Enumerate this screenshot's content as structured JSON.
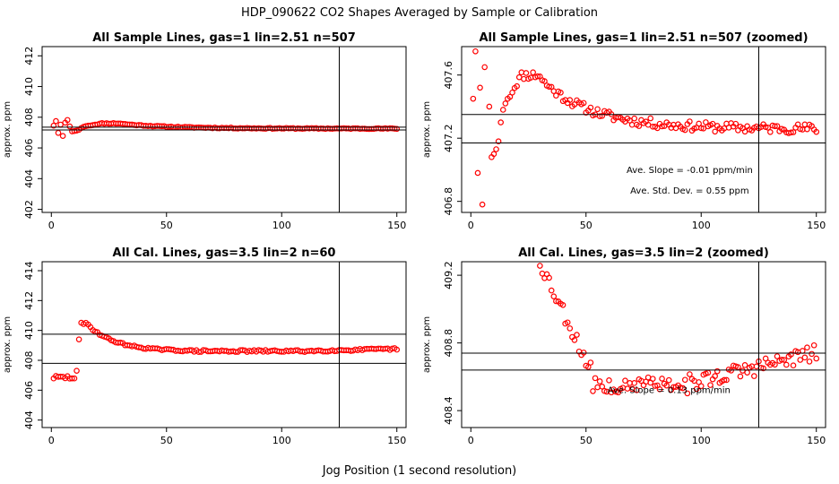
{
  "figure": {
    "title": "HDP_090622  CO2 Shapes Averaged by Sample or Calibration",
    "xlabel": "Jog Position (1 second resolution)"
  },
  "colors": {
    "points": "#ff0000",
    "lines": "#000000",
    "frame": "#000000"
  },
  "chart_data": [
    {
      "type": "scatter",
      "title": "All Sample Lines, gas=1 lin=2.51 n=507",
      "ylabel": "approx. ppm",
      "xlim": [
        -4,
        154
      ],
      "ylim": [
        401.8,
        412.6
      ],
      "xticks": [
        0,
        50,
        100,
        150
      ],
      "yticks": [
        402,
        404,
        406,
        408,
        410,
        412
      ],
      "hlines": [
        407.35,
        407.17
      ],
      "vline": 125,
      "annotations": [],
      "points": []
    },
    {
      "type": "scatter",
      "title": "All Sample Lines, gas=1 lin=2.51 n=507 (zoomed)",
      "ylabel": "approx. ppm",
      "xlim": [
        -4,
        154
      ],
      "ylim": [
        406.73,
        407.78
      ],
      "xticks": [
        0,
        50,
        100,
        150
      ],
      "yticks": [
        406.8,
        407.2,
        407.6
      ],
      "hlines": [
        407.35,
        407.17
      ],
      "vline": 125,
      "annotations": [
        {
          "text": "Ave. Slope =  -0.01  ppm/min",
          "x": 95,
          "y": 406.98
        },
        {
          "text": "Ave. Std. Dev. =  0.55  ppm",
          "x": 95,
          "y": 406.85
        }
      ],
      "points": []
    },
    {
      "type": "scatter",
      "title": "All Cal. Lines, gas=3.5 lin=2 n=60",
      "ylabel": "approx. ppm",
      "xlim": [
        -4,
        154
      ],
      "ylim": [
        403.5,
        414.6
      ],
      "xticks": [
        0,
        50,
        100,
        150
      ],
      "yticks": [
        404,
        406,
        408,
        410,
        412,
        414
      ],
      "hlines": [
        409.75,
        407.8
      ],
      "vline": 125,
      "annotations": [],
      "points": []
    },
    {
      "type": "scatter",
      "title": "All Cal. Lines, gas=3.5 lin=2 (zoomed)",
      "ylabel": "approx. ppm",
      "xlim": [
        -4,
        154
      ],
      "ylim": [
        408.3,
        409.28
      ],
      "xticks": [
        0,
        50,
        100,
        150
      ],
      "yticks": [
        408.4,
        408.8,
        409.2
      ],
      "hlines": [
        408.74,
        408.64
      ],
      "vline": 125,
      "annotations": [
        {
          "text": "Ave. Slope =  0.13  ppm/min",
          "x": 86,
          "y": 408.505
        }
      ],
      "points": []
    }
  ]
}
